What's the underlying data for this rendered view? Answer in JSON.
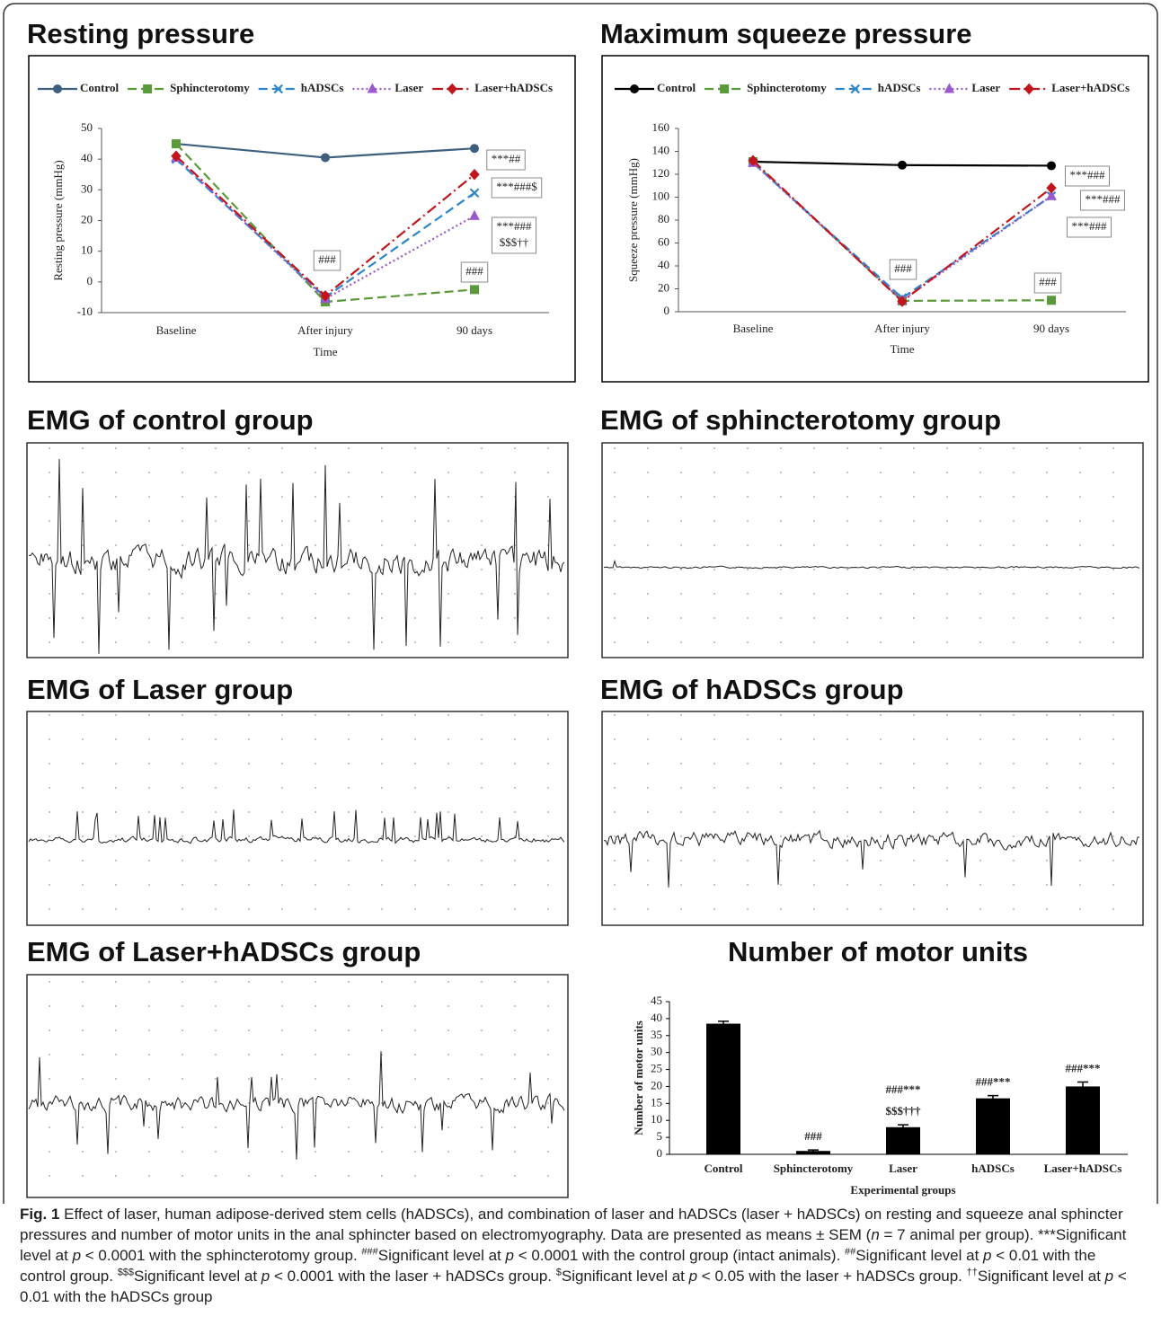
{
  "chart_data": [
    {
      "type": "line",
      "title": "Resting pressure",
      "xlabel": "Time",
      "ylabel": "Resting pressure (mmHg)",
      "categories": [
        "Baseline",
        "After injury",
        "90 days"
      ],
      "series": [
        {
          "name": "Control",
          "color": "#3f5f7f",
          "dash": "solid",
          "marker": "circle",
          "values": [
            45,
            40.5,
            43.5
          ]
        },
        {
          "name": "Sphincterotomy",
          "color": "#5a9a3a",
          "dash": "dashed",
          "marker": "square",
          "values": [
            45,
            -6.5,
            -2.5
          ]
        },
        {
          "name": "hADSCs",
          "color": "#2e86c9",
          "dash": "dashed",
          "marker": "x",
          "values": [
            40,
            -5,
            29
          ]
        },
        {
          "name": "Laser",
          "color": "#9b59d0",
          "dash": "dotted",
          "marker": "triangle",
          "values": [
            40.5,
            -5.5,
            21.5
          ]
        },
        {
          "name": "Laser+hADSCs",
          "color": "#c0161c",
          "dash": "dashdot",
          "marker": "diamond",
          "values": [
            41,
            -4.5,
            35
          ]
        }
      ],
      "ylim": [
        -10,
        50
      ],
      "yticks": [
        -10,
        0,
        10,
        20,
        30,
        40,
        50
      ],
      "annotations": [
        [
          "***##"
        ],
        [
          "***###$"
        ],
        [
          "***###",
          "$$$††"
        ],
        [
          "###"
        ],
        [
          "###"
        ]
      ]
    },
    {
      "type": "line",
      "title": "Maximum squeeze pressure",
      "xlabel": "Time",
      "ylabel": "Squeeze pressure (mmHg)",
      "categories": [
        "Baseline",
        "After injury",
        "90 days"
      ],
      "series": [
        {
          "name": "Control",
          "color": "#000000",
          "dash": "solid",
          "marker": "circle",
          "values": [
            131,
            128,
            127.5
          ]
        },
        {
          "name": "Sphincterotomy",
          "color": "#5a9a3a",
          "dash": "dashed",
          "marker": "square",
          "values": [
            131,
            9.5,
            10
          ]
        },
        {
          "name": "hADSCs",
          "color": "#2e86c9",
          "dash": "dashed",
          "marker": "x",
          "values": [
            130,
            12,
            101
          ]
        },
        {
          "name": "Laser",
          "color": "#9b59d0",
          "dash": "dotted",
          "marker": "triangle",
          "values": [
            130,
            10,
            101
          ]
        },
        {
          "name": "Laser+hADSCs",
          "color": "#c0161c",
          "dash": "dashdot",
          "marker": "diamond",
          "values": [
            132,
            9,
            108
          ]
        }
      ],
      "ylim": [
        0,
        160
      ],
      "yticks": [
        0,
        20,
        40,
        60,
        80,
        100,
        120,
        140,
        160
      ],
      "annotations": [
        [
          "***###"
        ],
        [
          "***###"
        ],
        [
          "***###"
        ],
        [
          "###"
        ],
        [
          "###"
        ]
      ]
    },
    {
      "type": "bar",
      "title": "Number of motor units",
      "xlabel": "Experimental groups",
      "ylabel": "Number of motor units",
      "categories": [
        "Control",
        "Sphincterotomy",
        "Laser",
        "hADSCs",
        "Laser+hADSCs"
      ],
      "values": [
        38.5,
        1,
        8,
        16.5,
        20
      ],
      "errors": [
        0.7,
        0.3,
        0.7,
        0.8,
        1.3
      ],
      "color": "#000000",
      "ylim": [
        0,
        45
      ],
      "yticks": [
        0,
        5,
        10,
        15,
        20,
        25,
        30,
        35,
        40,
        45
      ],
      "annotations": [
        null,
        [
          "###"
        ],
        [
          "###***",
          "$$$†††"
        ],
        [
          "###***"
        ],
        [
          "###***"
        ]
      ]
    }
  ],
  "emg_panels": [
    {
      "title": "EMG of control group"
    },
    {
      "title": "EMG of sphincterotomy group"
    },
    {
      "title": "EMG of Laser group"
    },
    {
      "title": "EMG of hADSCs group"
    },
    {
      "title": "EMG of Laser+hADSCs group"
    }
  ],
  "caption": [
    {
      "text": "Fig. 1",
      "style": "bold"
    },
    {
      "text": " Effect of laser, human adipose-derived stem cells (hADSCs), and combination of laser and hADSCs (laser + hADSCs) on resting and squeeze anal sphincter pressures and number of motor units in the anal sphincter based on electromyography. Data are presented as means ± SEM (",
      "style": "normal"
    },
    {
      "text": "n",
      "style": "italic"
    },
    {
      "text": " = 7 animal per group). ***Significant level at ",
      "style": "normal"
    },
    {
      "text": "p",
      "style": "italic"
    },
    {
      "text": " < 0.0001 with the sphincterotomy group. ",
      "style": "normal"
    },
    {
      "text": "###",
      "style": "sup"
    },
    {
      "text": "Significant level at ",
      "style": "normal"
    },
    {
      "text": "p",
      "style": "italic"
    },
    {
      "text": " < 0.0001 with the control group (intact animals). ",
      "style": "normal"
    },
    {
      "text": "##",
      "style": "sup"
    },
    {
      "text": "Significant level at ",
      "style": "normal"
    },
    {
      "text": "p",
      "style": "italic"
    },
    {
      "text": " < 0.01 with the control group. ",
      "style": "normal"
    },
    {
      "text": "$$$",
      "style": "sup"
    },
    {
      "text": "Significant level at ",
      "style": "normal"
    },
    {
      "text": "p",
      "style": "italic"
    },
    {
      "text": " < 0.0001 with the laser + hADSCs group. ",
      "style": "normal"
    },
    {
      "text": "$",
      "style": "sup"
    },
    {
      "text": "Significant level at ",
      "style": "normal"
    },
    {
      "text": "p",
      "style": "italic"
    },
    {
      "text": " < 0.05 with the laser + hADSCs group. ",
      "style": "normal"
    },
    {
      "text": "††",
      "style": "sup"
    },
    {
      "text": "Significant level at ",
      "style": "normal"
    },
    {
      "text": "p",
      "style": "italic"
    },
    {
      "text": " < 0.01 with the hADSCs group",
      "style": "normal"
    }
  ]
}
